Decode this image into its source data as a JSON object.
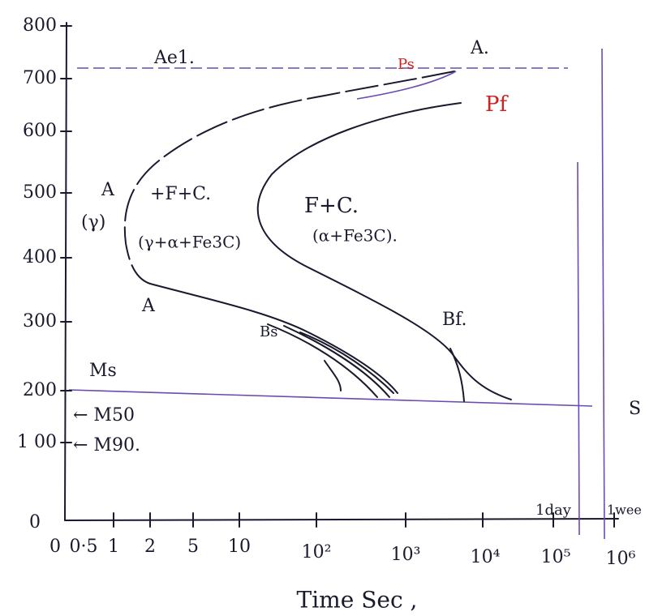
{
  "diagram": {
    "title": "Time Sec ,",
    "y_ticks": [
      "800",
      "700",
      "600",
      "500",
      "400",
      "300",
      "200",
      "1 00",
      "0"
    ],
    "x_ticks": [
      "0",
      "0·5",
      "1",
      "2",
      "5",
      "10",
      "10²",
      "10³",
      "10⁴",
      "10⁵",
      "10⁶"
    ],
    "labels": {
      "ae1": "Ae1.",
      "ps": "Ps",
      "a_top": "A.",
      "pf": "Pf",
      "a_left": "A",
      "region_fc_upper": "+F+C.",
      "gamma": "(γ)",
      "region_mix": "(γ+α+Fe3C)",
      "region_fc": "F+C.",
      "region_alpha": "(α+Fe3C).",
      "a_lower": "A",
      "bs": "Bs",
      "bf": "Bf.",
      "ms": "Ms",
      "m50": "← M50",
      "m90": "← M90.",
      "day": "1day",
      "week": "1wee",
      "s_right": "S"
    }
  }
}
